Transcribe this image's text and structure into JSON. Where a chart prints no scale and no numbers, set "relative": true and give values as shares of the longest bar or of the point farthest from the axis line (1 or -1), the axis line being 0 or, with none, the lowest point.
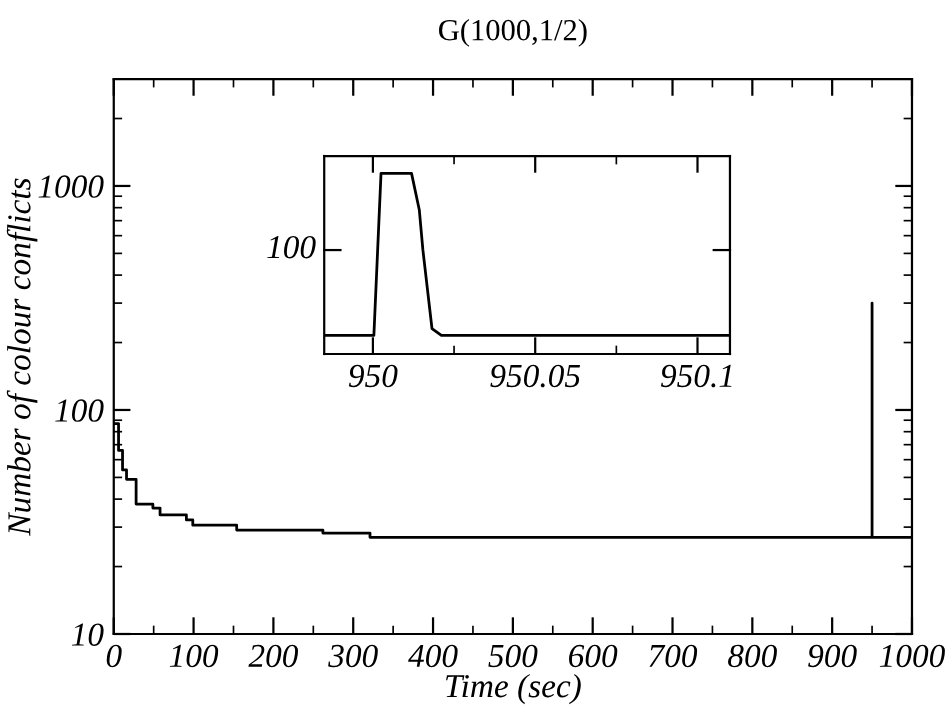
{
  "chart_data": [
    {
      "type": "step",
      "title": "G(1000,1/2)",
      "xlabel": "Time (sec)",
      "ylabel": "Number of colour conflicts",
      "log": "y",
      "x": [
        0,
        6,
        11,
        16,
        28,
        49,
        58,
        91,
        99,
        154,
        262,
        321,
        950,
        950,
        950,
        1000
      ],
      "values": [
        87,
        66,
        54,
        49,
        38,
        36.5,
        34,
        32.3,
        30.6,
        29.1,
        28.2,
        27,
        300,
        27,
        27,
        27
      ],
      "color": "#000000",
      "xlim": [
        0,
        1000
      ],
      "ylim": [
        10,
        3000
      ],
      "xticks": [
        0,
        {
          "value": 50,
          "label": null
        },
        100,
        {
          "value": 150,
          "label": null
        },
        200,
        {
          "value": 250,
          "label": null
        },
        300,
        {
          "value": 350,
          "label": null
        },
        400,
        {
          "value": 450,
          "label": null
        },
        500,
        {
          "value": 550,
          "label": null
        },
        600,
        {
          "value": 650,
          "label": null
        },
        700,
        {
          "value": 750,
          "label": null
        },
        800,
        {
          "value": 850,
          "label": null
        },
        900,
        {
          "value": 950,
          "label": null
        },
        1000
      ],
      "yticks": [
        10,
        {
          "value": 20,
          "label": null
        },
        {
          "value": 30,
          "label": null
        },
        {
          "value": 40,
          "label": null
        },
        {
          "value": 50,
          "label": null
        },
        {
          "value": 60,
          "label": null
        },
        {
          "value": 70,
          "label": null
        },
        {
          "value": 80,
          "label": null
        },
        {
          "value": 90,
          "label": null
        },
        100,
        {
          "value": 200,
          "label": null
        },
        {
          "value": 300,
          "label": null
        },
        {
          "value": 400,
          "label": null
        },
        {
          "value": 500,
          "label": null
        },
        {
          "value": 600,
          "label": null
        },
        {
          "value": 700,
          "label": null
        },
        {
          "value": 800,
          "label": null
        },
        {
          "value": 900,
          "label": null
        },
        1000,
        {
          "value": 2000,
          "label": null
        },
        {
          "value": 3000,
          "label": null
        }
      ],
      "grid": false,
      "legend": false
    },
    {
      "type": "line",
      "relative": true,
      "annotations": [
        "100"
      ],
      "x": [
        949.985,
        950.0003,
        950.0025,
        950.0119,
        950.0143,
        950.0154,
        950.0182,
        950.0211,
        950.11
      ],
      "values": [
        0.103,
        0.103,
        1,
        1,
        0.797,
        0.576,
        0.141,
        0.103,
        0.103
      ],
      "color": "#000000",
      "xlim": [
        949.985,
        950.11
      ],
      "xticks": [
        950,
        {
          "value": 950.025,
          "label": null
        },
        950.05,
        {
          "value": 950.075,
          "label": null
        },
        950.1
      ],
      "grid": false,
      "legend": false
    }
  ]
}
